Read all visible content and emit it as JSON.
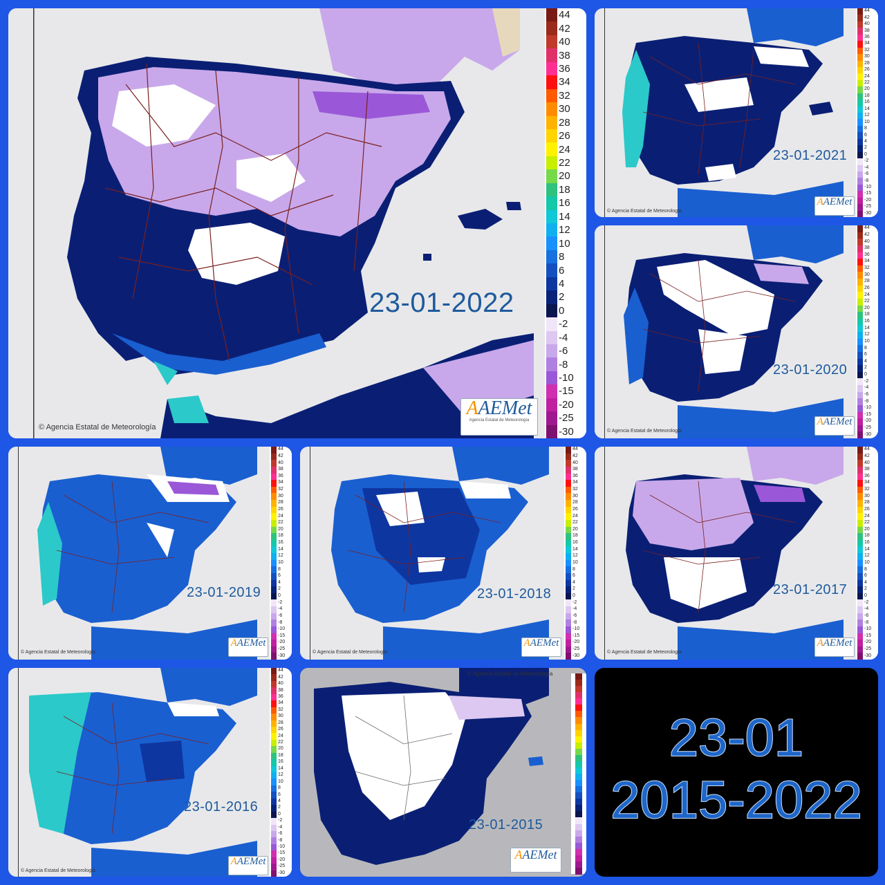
{
  "collage_title": {
    "line1": "23-01",
    "line2": "2015-2022"
  },
  "copyright": "Agencia Estatal de Meteorología",
  "logo": {
    "text": "AEMet",
    "subtitle": "Agencia Estatal de Meteorología"
  },
  "legend": {
    "labels": [
      "44",
      "42",
      "40",
      "38",
      "36",
      "34",
      "32",
      "30",
      "28",
      "26",
      "24",
      "22",
      "20",
      "18",
      "16",
      "14",
      "12",
      "10",
      "8",
      "6",
      "4",
      "2",
      "0",
      "-2",
      "-4",
      "-6",
      "-8",
      "-10",
      "-15",
      "-20",
      "-25",
      "-30"
    ],
    "colors": [
      "#7a1a14",
      "#9a2a1a",
      "#c0392b",
      "#e0306a",
      "#ff2f92",
      "#ff1010",
      "#ff5a00",
      "#ff8c00",
      "#ffb300",
      "#ffd400",
      "#fff200",
      "#c8ee00",
      "#76d94a",
      "#2ec27e",
      "#14c8a8",
      "#10c8d8",
      "#10b0f0",
      "#1890ff",
      "#1670e0",
      "#1450c0",
      "#0e36a0",
      "#08227a",
      "#0a1550",
      "#f0e6f8",
      "#dcc8f0",
      "#c8a8ea",
      "#b080e0",
      "#9a58d8",
      "#d030b0",
      "#c020a0",
      "#a01890",
      "#801070"
    ]
  },
  "panels": [
    {
      "id": "2022",
      "date": "23-01-2022",
      "palette": "cold"
    },
    {
      "id": "2021",
      "date": "23-01-2021",
      "palette": "mild"
    },
    {
      "id": "2020",
      "date": "23-01-2020",
      "palette": "mid"
    },
    {
      "id": "2019",
      "date": "23-01-2019",
      "palette": "mild"
    },
    {
      "id": "2018",
      "date": "23-01-2018",
      "palette": "mid"
    },
    {
      "id": "2017",
      "date": "23-01-2017",
      "palette": "cold"
    },
    {
      "id": "2016",
      "date": "23-01-2016",
      "palette": "warm"
    },
    {
      "id": "2015",
      "date": "23-01-2015",
      "palette": "frost"
    }
  ],
  "colors": {
    "sea": "#e8e8ea",
    "france": "#6a8fd8",
    "white_frost": "#ffffff",
    "lilac": "#c8a8ea",
    "navy": "#0a1f74",
    "blue": "#1a5fd0",
    "cyan": "#2bc9c9",
    "border_lines": "#7a1f1f"
  }
}
